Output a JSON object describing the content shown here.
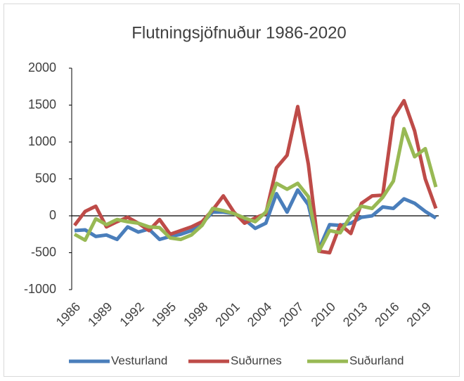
{
  "chart_data": {
    "type": "line",
    "title": "Flutningsjöfnuður 1986-2020",
    "x": [
      1986,
      1987,
      1988,
      1989,
      1990,
      1991,
      1992,
      1993,
      1994,
      1995,
      1996,
      1997,
      1998,
      1999,
      2000,
      2001,
      2002,
      2003,
      2004,
      2005,
      2006,
      2007,
      2008,
      2009,
      2010,
      2011,
      2012,
      2013,
      2014,
      2015,
      2016,
      2017,
      2018,
      2019,
      2020
    ],
    "xlim": [
      1986,
      2020
    ],
    "xticks": [
      1986,
      1989,
      1992,
      1995,
      1998,
      2001,
      2004,
      2007,
      2010,
      2013,
      2016,
      2019
    ],
    "ylim": [
      -1000,
      2000
    ],
    "yticks": [
      -1000,
      -500,
      0,
      500,
      1000,
      1500,
      2000
    ],
    "legend": "bottom",
    "series": [
      {
        "name": "Vesturland",
        "color": "#4a7ebb",
        "values": [
          -200,
          -190,
          -280,
          -260,
          -320,
          -150,
          -220,
          -180,
          -320,
          -280,
          -250,
          -200,
          -100,
          50,
          50,
          30,
          -50,
          -170,
          -100,
          300,
          50,
          350,
          150,
          -450,
          -120,
          -130,
          -100,
          -20,
          0,
          120,
          100,
          230,
          170,
          60,
          -30
        ]
      },
      {
        "name": "Suðurnes",
        "color": "#be4b48",
        "values": [
          -130,
          60,
          130,
          -150,
          -80,
          -20,
          -100,
          -200,
          -50,
          -250,
          -200,
          -150,
          -80,
          80,
          270,
          50,
          -100,
          -30,
          30,
          650,
          820,
          1480,
          700,
          -480,
          -500,
          -120,
          -240,
          170,
          270,
          280,
          1330,
          1560,
          1150,
          500,
          100
        ]
      },
      {
        "name": "Suðurland",
        "color": "#98b954",
        "values": [
          -250,
          -330,
          -40,
          -120,
          -50,
          -80,
          -100,
          -150,
          -160,
          -300,
          -320,
          -260,
          -130,
          100,
          70,
          30,
          -30,
          -80,
          50,
          440,
          360,
          440,
          260,
          -480,
          -200,
          -230,
          0,
          130,
          100,
          250,
          470,
          1180,
          800,
          910,
          390
        ]
      }
    ]
  }
}
